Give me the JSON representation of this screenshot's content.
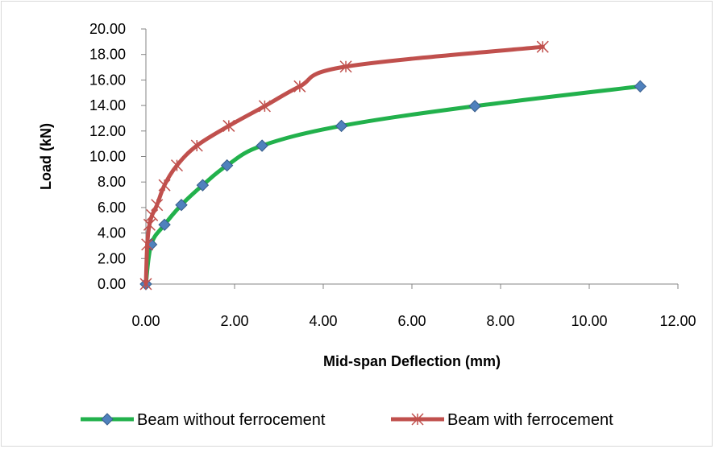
{
  "chart_data": {
    "type": "line",
    "title": "",
    "xlabel": "Mid-span Deflection (mm)",
    "ylabel": "Load (kN)",
    "xlim": [
      0,
      12
    ],
    "ylim": [
      0,
      20
    ],
    "x_ticks": [
      "0.00",
      "2.00",
      "4.00",
      "6.00",
      "8.00",
      "10.00",
      "12.00"
    ],
    "y_ticks": [
      "0.00",
      "2.00",
      "4.00",
      "6.00",
      "8.00",
      "10.00",
      "12.00",
      "14.00",
      "16.00",
      "18.00",
      "20.00"
    ],
    "grid": false,
    "legend_position": "bottom",
    "series": [
      {
        "name": "Beam without ferrocement",
        "color": "#22b14c",
        "marker_color": "#4f81bd",
        "marker": "diamond",
        "x": [
          0.0,
          0.12,
          0.42,
          0.8,
          1.28,
          1.83,
          2.62,
          4.41,
          7.42,
          11.15
        ],
        "y": [
          0.0,
          3.1,
          4.65,
          6.2,
          7.75,
          9.3,
          10.85,
          12.4,
          13.95,
          15.5
        ]
      },
      {
        "name": "Beam with ferrocement",
        "color": "#c0504d",
        "marker_color": "#c0504d",
        "marker": "asterisk",
        "x": [
          0.0,
          0.03,
          0.08,
          0.14,
          0.25,
          0.42,
          0.7,
          1.15,
          1.87,
          2.68,
          3.47,
          4.51,
          8.95
        ],
        "y": [
          0.0,
          3.1,
          4.65,
          5.4,
          6.2,
          7.75,
          9.3,
          10.85,
          12.4,
          13.95,
          15.5,
          17.05,
          18.6
        ]
      }
    ]
  }
}
